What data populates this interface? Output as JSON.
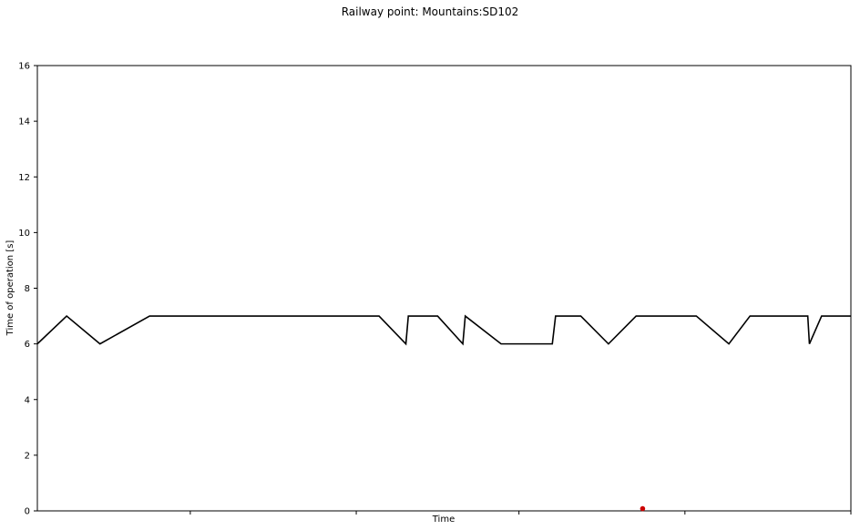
{
  "chart_data": {
    "type": "line",
    "title": "Railway point: Mountains:SD102",
    "xlabel": "Time",
    "ylabel": "Time of operation [s]",
    "ylim": [
      0,
      16
    ],
    "yticks": [
      0,
      2,
      4,
      6,
      8,
      10,
      12,
      14,
      16
    ],
    "xlim": [
      0,
      100
    ],
    "xticks": [
      18.8,
      39.2,
      59.2,
      79.6,
      100
    ],
    "xtick_labels_shown": false,
    "grid": false,
    "legend": "none",
    "colors": {
      "series": "#000000",
      "marker": "#cc0000"
    },
    "series": [
      {
        "x": [
          0,
          3.6,
          7.7,
          13.8,
          42.0,
          45.3,
          45.6,
          49.2,
          52.3,
          52.6,
          57.0,
          63.3,
          63.7,
          66.8,
          70.2,
          73.6,
          81.0,
          85.0,
          87.6,
          94.7,
          94.9,
          96.4,
          100
        ],
        "y": [
          6,
          7,
          6,
          7,
          7,
          6,
          7,
          7,
          6,
          7,
          6,
          6,
          7,
          7,
          6,
          7,
          7,
          6,
          7,
          7,
          6,
          7,
          7
        ]
      }
    ],
    "markers": [
      {
        "x": 74.4,
        "y": 0.08
      }
    ]
  }
}
